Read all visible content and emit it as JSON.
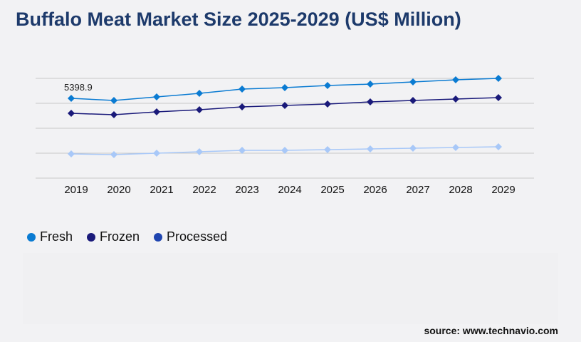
{
  "title": "Buffalo Meat Market Size 2025-2029 (US$ Million)",
  "source": "source: www.technavio.com",
  "chart_data": {
    "type": "line",
    "title": "Buffalo Meat Market Size 2025-2029 (US$ Million)",
    "x": [
      "2019",
      "2020",
      "2021",
      "2022",
      "2023",
      "2024",
      "2025",
      "2026",
      "2027",
      "2028",
      "2029"
    ],
    "ylim": [
      0,
      6750
    ],
    "grid": true,
    "legend_position": "bottom-left",
    "series": [
      {
        "name": "Fresh",
        "color": "#0a7bd2",
        "marker_color": "#0a7bd2",
        "legend_color": "#0a7bd2",
        "values": [
          5398.9,
          5254,
          5495,
          5736,
          6025,
          6121,
          6266,
          6362,
          6507,
          6652,
          6748
        ]
      },
      {
        "name": "Frozen",
        "color": "#1a1a7a",
        "marker_color": "#1a1a7a",
        "legend_color": "#1a1a7a",
        "values": [
          4386,
          4290,
          4483,
          4627,
          4820,
          4916,
          5013,
          5157,
          5254,
          5350,
          5447
        ]
      },
      {
        "name": "Processed",
        "color": "#a8c8f8",
        "marker_color": "#a8c8f8",
        "legend_color": "#1f45b0",
        "values": [
          1639,
          1591,
          1687,
          1783,
          1880,
          1880,
          1928,
          1976,
          2024,
          2073,
          2121
        ]
      }
    ],
    "annotations": [
      {
        "series": "Fresh",
        "x": "2019",
        "label": "5398.9"
      }
    ]
  }
}
